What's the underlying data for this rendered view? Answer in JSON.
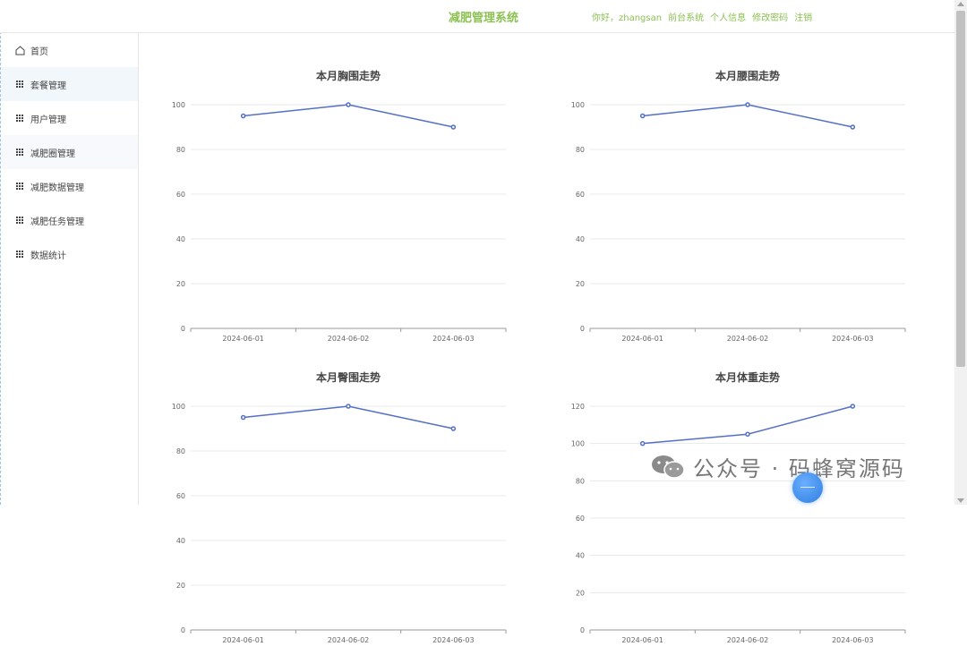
{
  "header": {
    "site_title": "减肥管理系统",
    "greeting": "你好，zhangsan",
    "links": [
      "前台系统",
      "个人信息",
      "修改密码",
      "注销"
    ]
  },
  "sidebar": {
    "items": [
      {
        "label": "首页",
        "icon": "home-icon"
      },
      {
        "label": "套餐管理",
        "icon": "grid-icon"
      },
      {
        "label": "用户管理",
        "icon": "grid-icon"
      },
      {
        "label": "减肥圈管理",
        "icon": "grid-icon"
      },
      {
        "label": "减肥数据管理",
        "icon": "grid-icon"
      },
      {
        "label": "减肥任务管理",
        "icon": "grid-icon"
      },
      {
        "label": "数据统计",
        "icon": "grid-icon"
      }
    ]
  },
  "colors": {
    "brand": "#8cc152",
    "line": "#5470c6",
    "grid": "#e8e8e8"
  },
  "chart_data": [
    {
      "type": "line",
      "title": "本月胸围走势",
      "categories": [
        "2024-06-01",
        "2024-06-02",
        "2024-06-03"
      ],
      "values": [
        95,
        100,
        90
      ],
      "ylim": [
        0,
        100
      ],
      "yticks": [
        0,
        20,
        40,
        60,
        80,
        100
      ]
    },
    {
      "type": "line",
      "title": "本月腰围走势",
      "categories": [
        "2024-06-01",
        "2024-06-02",
        "2024-06-03"
      ],
      "values": [
        95,
        100,
        90
      ],
      "ylim": [
        0,
        100
      ],
      "yticks": [
        0,
        20,
        40,
        60,
        80,
        100
      ]
    },
    {
      "type": "line",
      "title": "本月臀围走势",
      "categories": [
        "2024-06-01",
        "2024-06-02",
        "2024-06-03"
      ],
      "values": [
        95,
        100,
        90
      ],
      "ylim": [
        0,
        100
      ],
      "yticks": [
        0,
        20,
        40,
        60,
        80,
        100
      ]
    },
    {
      "type": "line",
      "title": "本月体重走势",
      "categories": [
        "2024-06-01",
        "2024-06-02",
        "2024-06-03"
      ],
      "values": [
        100,
        105,
        120
      ],
      "ylim": [
        0,
        120
      ],
      "yticks": [
        0,
        20,
        40,
        60,
        80,
        100,
        120
      ]
    }
  ],
  "watermark": {
    "text": "公众号 · 码蜂窝源码",
    "icon": "wechat-icon"
  }
}
